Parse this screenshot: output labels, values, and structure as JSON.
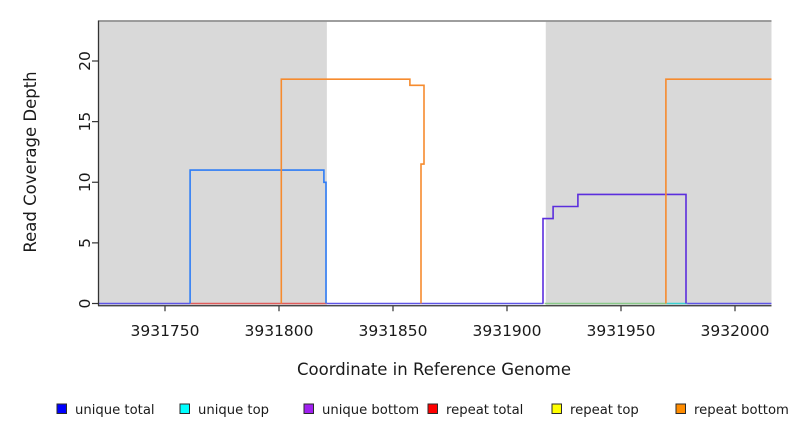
{
  "figure": {
    "xlabel": "Coordinate in Reference Genome",
    "ylabel": "Read Coverage Depth"
  },
  "legend": {
    "items": [
      {
        "label": "unique total",
        "color": "#0000ff"
      },
      {
        "label": "unique top",
        "color": "#00ffff"
      },
      {
        "label": "unique bottom",
        "color": "#a020f0"
      },
      {
        "label": "repeat total",
        "color": "#ff0000"
      },
      {
        "label": "repeat top",
        "color": "#ffff00"
      },
      {
        "label": "repeat bottom",
        "color": "#ff8c00"
      }
    ]
  },
  "chart_data": {
    "type": "line",
    "subtype": "step-coverage-plot",
    "title": "",
    "xlabel": "Coordinate in Reference Genome",
    "ylabel": "Read Coverage Depth",
    "xlim": [
      3931721,
      3932016
    ],
    "ylim": [
      0,
      23.4
    ],
    "x_ticks": [
      3931750,
      3931800,
      3931850,
      3931900,
      3931950,
      3932000
    ],
    "y_ticks": [
      0,
      5,
      10,
      15,
      20
    ],
    "grid": false,
    "shade_color": "#d9d9d9",
    "top_border_color": "#919191",
    "axis_color": "#333333",
    "shaded_regions": [
      {
        "x1": 3931721,
        "x2": 3931821
      },
      {
        "x1": 3931917,
        "x2": 3932016
      }
    ],
    "series": [
      {
        "name": "unique total",
        "line_color": "#2e7cf6",
        "points": [
          [
            3931761,
            0
          ],
          [
            3931761,
            11
          ],
          [
            3931819.7,
            11
          ],
          [
            3931819.7,
            10
          ],
          [
            3931820.6,
            10
          ],
          [
            3931820.6,
            0
          ]
        ]
      },
      {
        "name": "unique bottom",
        "line_color": "#5b2edd",
        "points": [
          [
            3931915.8,
            0
          ],
          [
            3931915.8,
            7
          ],
          [
            3931920.2,
            7
          ],
          [
            3931920.2,
            8
          ],
          [
            3931931.1,
            8
          ],
          [
            3931931.1,
            9
          ],
          [
            3931978.5,
            9
          ],
          [
            3931978.5,
            0
          ]
        ]
      },
      {
        "name": "repeat bottom",
        "line_color": "#f68b2e",
        "points": [
          [
            3931801,
            0
          ],
          [
            3931801,
            18.5
          ],
          [
            3931857.4,
            18.5
          ],
          [
            3931857.4,
            18
          ],
          [
            3931863.6,
            18
          ],
          [
            3931863.6,
            11.5
          ],
          [
            3931862.3,
            11.5
          ],
          [
            3931862.3,
            0
          ]
        ]
      },
      {
        "name": "repeat bottom right",
        "line_color": "#f68b2e",
        "points": [
          [
            3931969.7,
            0
          ],
          [
            3931969.7,
            18.5
          ],
          [
            3932016,
            18.5
          ]
        ]
      }
    ],
    "baseline_segments": [
      {
        "x1": 3931721,
        "x2": 3931761,
        "color": "#5f55e6"
      },
      {
        "x1": 3931761,
        "x2": 3931821,
        "color": "#e05c5c"
      },
      {
        "x1": 3931821,
        "x2": 3931916,
        "color": "#5f55e6"
      },
      {
        "x1": 3931916.5,
        "x2": 3931970,
        "color": "#8aca8a"
      },
      {
        "x1": 3931970,
        "x2": 3931979,
        "color": "#3cd2d2"
      },
      {
        "x1": 3931979,
        "x2": 3932016,
        "color": "#5f55e6"
      }
    ]
  }
}
